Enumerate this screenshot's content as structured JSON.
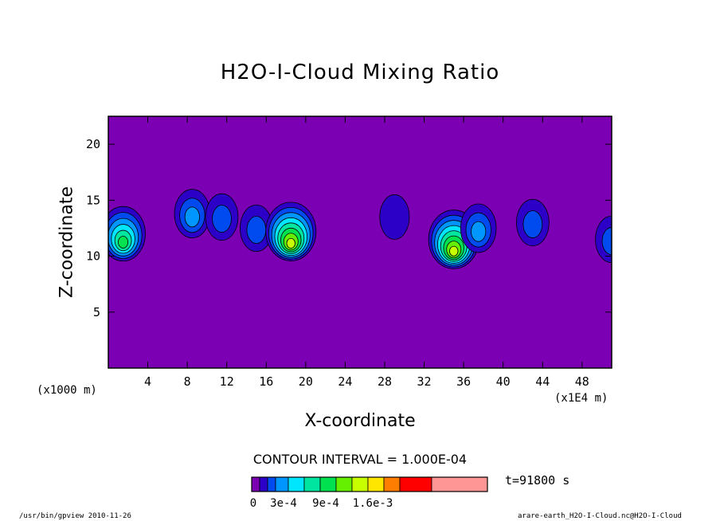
{
  "chart_data": {
    "type": "heatmap",
    "title": "H2O-I-Cloud Mixing Ratio",
    "xlabel": "X-coordinate",
    "ylabel": "Z-coordinate",
    "x_unit": "(x1E4 m)",
    "y_unit": "(x1000 m)",
    "xlim": [
      0,
      51
    ],
    "ylim": [
      0,
      22.5
    ],
    "x_ticks": [
      4,
      8,
      12,
      16,
      20,
      24,
      28,
      32,
      36,
      40,
      44,
      48
    ],
    "y_ticks": [
      5,
      10,
      15,
      20
    ],
    "contour_interval": "CONTOUR INTERVAL = 1.000E-04",
    "time_label": "t=91800 s",
    "background_level": 0,
    "colorbar": {
      "levels": [
        0,
        0.0001,
        0.0002,
        0.0003,
        0.0004,
        0.0005,
        0.0006,
        0.0007,
        0.0008,
        0.0009,
        0.0012,
        0.0016,
        0.002
      ],
      "colors": [
        "#7b00b4",
        "#2d00c8",
        "#004bf0",
        "#0096ff",
        "#00e6ff",
        "#00e6a0",
        "#00e150",
        "#64f000",
        "#c8ff00",
        "#ffe600",
        "#ff7d00",
        "#ff0000",
        "#ff9696"
      ],
      "tick_labels": [
        "0",
        "3e-4",
        "9e-4",
        "1.6e-3"
      ],
      "tick_values": [
        0,
        0.0003,
        0.0009,
        0.0016
      ]
    },
    "features": [
      {
        "x": 1.5,
        "z": 12.0,
        "peak": 0.0006
      },
      {
        "x": 8.5,
        "z": 13.8,
        "peak": 0.0003
      },
      {
        "x": 11.5,
        "z": 13.5,
        "peak": 0.0002
      },
      {
        "x": 15.0,
        "z": 12.5,
        "peak": 0.0002
      },
      {
        "x": 18.5,
        "z": 12.2,
        "peak": 0.0008
      },
      {
        "x": 29.0,
        "z": 13.5,
        "peak": 0.0001
      },
      {
        "x": 35.0,
        "z": 11.5,
        "peak": 0.0008
      },
      {
        "x": 37.5,
        "z": 12.5,
        "peak": 0.0003
      },
      {
        "x": 43.0,
        "z": 13.0,
        "peak": 0.0002
      },
      {
        "x": 51.0,
        "z": 11.5,
        "peak": 0.0002
      }
    ]
  },
  "footer": {
    "left": "/usr/bin/gpview  2010-11-26",
    "right": "arare-earth_H2O-I-Cloud.nc@H2O-I-Cloud"
  }
}
